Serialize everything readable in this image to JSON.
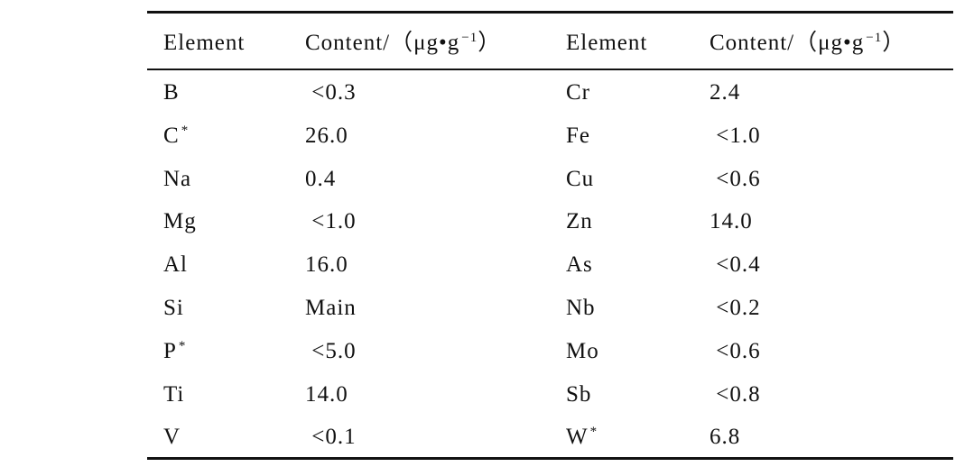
{
  "table": {
    "header": [
      "Element",
      {
        "text": "Content/（μg•g",
        "sup": "−1",
        "after": "）"
      },
      "Element",
      {
        "text": "Content/（μg•g",
        "sup": "−1",
        "after": "）"
      }
    ],
    "rows": [
      [
        "B",
        " <0.3",
        "Cr",
        "2.4"
      ],
      [
        {
          "text": "C",
          "sup": "*"
        },
        "26.0",
        "Fe",
        " <1.0"
      ],
      [
        "Na",
        "0.4",
        "Cu",
        " <0.6"
      ],
      [
        "Mg",
        " <1.0",
        "Zn",
        "14.0"
      ],
      [
        "Al",
        "16.0",
        "As",
        " <0.4"
      ],
      [
        "Si",
        "Main",
        "Nb",
        " <0.2"
      ],
      [
        {
          "text": "P",
          "sup": "*"
        },
        " <5.0",
        "Mo",
        " <0.6"
      ],
      [
        "Ti",
        "14.0",
        "Sb",
        " <0.8"
      ],
      [
        "V",
        " <0.1",
        {
          "text": "W",
          "sup": "*"
        },
        "6.8"
      ]
    ]
  }
}
